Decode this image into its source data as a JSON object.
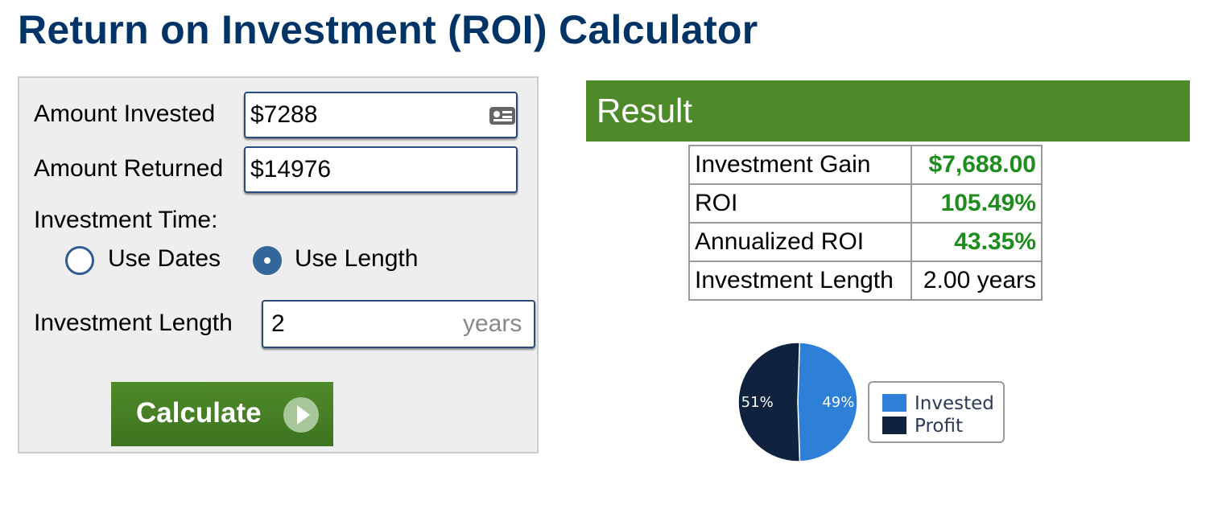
{
  "title": "Return on Investment (ROI) Calculator",
  "form": {
    "amount_invested_label": "Amount Invested",
    "amount_invested_value": "$7288",
    "amount_returned_label": "Amount Returned",
    "amount_returned_value": "$14976",
    "investment_time_label": "Investment Time:",
    "radio_use_dates": "Use Dates",
    "radio_use_length": "Use Length",
    "radio_selected": "Use Length",
    "investment_length_label": "Investment Length",
    "investment_length_value": "2",
    "investment_length_unit": "years",
    "calculate_label": "Calculate",
    "icons": {
      "field_icon": "contact-card-icon",
      "button_icon": "play-arrow-icon"
    }
  },
  "result": {
    "heading": "Result",
    "rows": [
      {
        "label": "Investment Gain",
        "value": "$7,688.00"
      },
      {
        "label": "ROI",
        "value": "105.49%"
      },
      {
        "label": "Annualized ROI",
        "value": "43.35%"
      },
      {
        "label": "Investment Length",
        "value": "2.00 years"
      }
    ]
  },
  "chart_data": {
    "type": "pie",
    "slices": [
      {
        "name": "Invested",
        "value": 49,
        "label": "49%",
        "color": "#2e7fd8"
      },
      {
        "name": "Profit",
        "value": 51,
        "label": "51%",
        "color": "#0f233f"
      }
    ],
    "legend": [
      "Invested",
      "Profit"
    ],
    "legend_position": "right"
  },
  "colors": {
    "title": "#003366",
    "accent_green": "#4f8a2a",
    "value_green": "#1d8d1d",
    "field_border": "#2a4d7f"
  }
}
